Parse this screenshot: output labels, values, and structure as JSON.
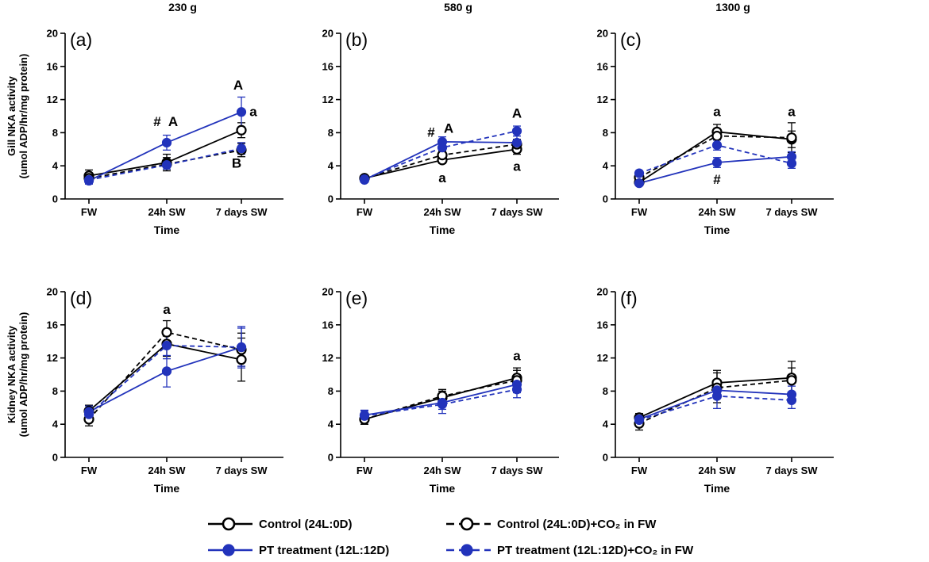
{
  "column_titles": [
    "230 g",
    "580 g",
    "1300 g"
  ],
  "row_ylabels": [
    [
      "Gill NKA activity",
      "(umol ADP/hr/mg protein)"
    ],
    [
      "Kidney NKA activity",
      "(umol ADP/hr/mg protein)"
    ]
  ],
  "legend": [
    {
      "label": "Control (24L:0D)",
      "color": "#000000",
      "dashed": false,
      "filled": false
    },
    {
      "label": "Control (24L:0D)+CO₂ in FW",
      "color": "#000000",
      "dashed": true,
      "filled": false
    },
    {
      "label": "PT treatment (12L:12D)",
      "color": "#2233bb",
      "dashed": false,
      "filled": true
    },
    {
      "label": "PT treatment (12L:12D)+CO₂ in FW",
      "color": "#2233bb",
      "dashed": true,
      "filled": true
    }
  ],
  "colors": {
    "control": "#000000",
    "pt": "#2233bb"
  },
  "chart_data": [
    {
      "type": "line",
      "panel_label": "(a)",
      "xlabel": "Time",
      "ylim": [
        0,
        20
      ],
      "yticks": [
        0,
        4,
        8,
        12,
        16,
        20
      ],
      "categories": [
        "FW",
        "24h SW",
        "7 days SW"
      ],
      "series": [
        {
          "name": "Control (24L:0D)",
          "values": [
            2.8,
            4.4,
            8.3
          ],
          "errors": [
            0.7,
            1.0,
            0.9
          ]
        },
        {
          "name": "Control (24L:0D)+CO₂ in FW",
          "values": [
            2.5,
            4.2,
            5.9
          ],
          "errors": [
            0.6,
            0.8,
            0.8
          ]
        },
        {
          "name": "PT treatment (12L:12D)",
          "values": [
            2.2,
            6.8,
            10.5
          ],
          "errors": [
            0.4,
            0.9,
            1.8
          ]
        },
        {
          "name": "PT treatment (12L:12D)+CO₂ in FW",
          "values": [
            2.3,
            4.1,
            6.1
          ],
          "errors": [
            0.5,
            0.5,
            0.7
          ]
        }
      ],
      "annotations": [
        {
          "text": "#",
          "cat": 1,
          "y": 8.8,
          "dx": -12
        },
        {
          "text": "A",
          "cat": 1,
          "y": 8.8,
          "dx": 8
        },
        {
          "text": "A",
          "cat": 2,
          "y": 13.2,
          "dx": -4
        },
        {
          "text": "a",
          "cat": 2,
          "y": 10.0,
          "dx": 15
        },
        {
          "text": "B",
          "cat": 2,
          "y": 3.8,
          "dx": -6
        }
      ]
    },
    {
      "type": "line",
      "panel_label": "(b)",
      "xlabel": "Time",
      "ylim": [
        0,
        20
      ],
      "yticks": [
        0,
        4,
        8,
        12,
        16,
        20
      ],
      "categories": [
        "FW",
        "24h SW",
        "7 days SW"
      ],
      "series": [
        {
          "name": "Control (24L:0D)",
          "values": [
            2.5,
            4.7,
            6.0
          ],
          "errors": [
            0.3,
            0.4,
            0.6
          ]
        },
        {
          "name": "Control (24L:0D)+CO₂ in FW",
          "values": [
            2.5,
            5.3,
            6.6
          ],
          "errors": [
            0.3,
            0.5,
            0.6
          ]
        },
        {
          "name": "PT treatment (12L:12D)",
          "values": [
            2.3,
            6.9,
            6.8
          ],
          "errors": [
            0.3,
            0.6,
            0.8
          ]
        },
        {
          "name": "PT treatment (12L:12D)+CO₂ in FW",
          "values": [
            2.4,
            6.2,
            8.2
          ],
          "errors": [
            0.3,
            0.6,
            0.6
          ]
        }
      ],
      "annotations": [
        {
          "text": "#",
          "cat": 1,
          "y": 7.5,
          "dx": -14
        },
        {
          "text": "A",
          "cat": 1,
          "y": 8.0,
          "dx": 8
        },
        {
          "text": "a",
          "cat": 1,
          "y": 2.0,
          "dx": 0
        },
        {
          "text": "A",
          "cat": 2,
          "y": 9.8,
          "dx": 0
        },
        {
          "text": "a",
          "cat": 2,
          "y": 3.4,
          "dx": 0
        }
      ]
    },
    {
      "type": "line",
      "panel_label": "(c)",
      "xlabel": "Time",
      "ylim": [
        0,
        20
      ],
      "yticks": [
        0,
        4,
        8,
        12,
        16,
        20
      ],
      "categories": [
        "FW",
        "24h SW",
        "7 days SW"
      ],
      "series": [
        {
          "name": "Control (24L:0D)",
          "values": [
            2.0,
            8.1,
            7.2
          ],
          "errors": [
            0.4,
            0.9,
            1.0
          ]
        },
        {
          "name": "Control (24L:0D)+CO₂ in FW",
          "values": [
            2.6,
            7.6,
            7.4
          ],
          "errors": [
            0.4,
            0.9,
            1.8
          ]
        },
        {
          "name": "PT treatment (12L:12D)",
          "values": [
            1.9,
            4.4,
            5.1
          ],
          "errors": [
            0.3,
            0.6,
            0.6
          ]
        },
        {
          "name": "PT treatment (12L:12D)+CO₂ in FW",
          "values": [
            3.1,
            6.5,
            4.3
          ],
          "errors": [
            0.3,
            0.6,
            0.6
          ]
        }
      ],
      "annotations": [
        {
          "text": "a",
          "cat": 1,
          "y": 10.0,
          "dx": 0
        },
        {
          "text": "#",
          "cat": 1,
          "y": 1.8,
          "dx": 0
        },
        {
          "text": "a",
          "cat": 2,
          "y": 10.0,
          "dx": 0
        }
      ]
    },
    {
      "type": "line",
      "panel_label": "(d)",
      "xlabel": "Time",
      "ylim": [
        0,
        20
      ],
      "yticks": [
        0,
        4,
        8,
        12,
        16,
        20
      ],
      "categories": [
        "FW",
        "24h SW",
        "7 days SW"
      ],
      "series": [
        {
          "name": "Control (24L:0D)",
          "values": [
            5.6,
            13.7,
            11.8
          ],
          "errors": [
            0.7,
            1.5,
            2.6
          ]
        },
        {
          "name": "Control (24L:0D)+CO₂ in FW",
          "values": [
            4.6,
            15.1,
            13.0
          ],
          "errors": [
            0.8,
            1.4,
            2.0
          ]
        },
        {
          "name": "PT treatment (12L:12D)",
          "values": [
            5.5,
            10.4,
            13.3
          ],
          "errors": [
            0.7,
            1.9,
            2.3
          ]
        },
        {
          "name": "PT treatment (12L:12D)+CO₂ in FW",
          "values": [
            5.2,
            13.5,
            13.3
          ],
          "errors": [
            0.7,
            1.6,
            2.5
          ]
        }
      ],
      "annotations": [
        {
          "text": "a",
          "cat": 1,
          "y": 17.3,
          "dx": 0
        }
      ]
    },
    {
      "type": "line",
      "panel_label": "(e)",
      "xlabel": "Time",
      "ylim": [
        0,
        20
      ],
      "yticks": [
        0,
        4,
        8,
        12,
        16,
        20
      ],
      "categories": [
        "FW",
        "24h SW",
        "7 days SW"
      ],
      "series": [
        {
          "name": "Control (24L:0D)",
          "values": [
            4.6,
            7.2,
            9.6
          ],
          "errors": [
            0.6,
            0.8,
            1.2
          ]
        },
        {
          "name": "Control (24L:0D)+CO₂ in FW",
          "values": [
            4.6,
            7.4,
            9.3
          ],
          "errors": [
            0.6,
            0.8,
            1.2
          ]
        },
        {
          "name": "PT treatment (12L:12D)",
          "values": [
            5.1,
            6.6,
            8.8
          ],
          "errors": [
            0.6,
            0.8,
            1.0
          ]
        },
        {
          "name": "PT treatment (12L:12D)+CO₂ in FW",
          "values": [
            5.0,
            6.4,
            8.2
          ],
          "errors": [
            0.6,
            1.1,
            1.0
          ]
        }
      ],
      "annotations": [
        {
          "text": "a",
          "cat": 2,
          "y": 11.7,
          "dx": 0
        }
      ]
    },
    {
      "type": "line",
      "panel_label": "(f)",
      "xlabel": "Time",
      "ylim": [
        0,
        20
      ],
      "yticks": [
        0,
        4,
        8,
        12,
        16,
        20
      ],
      "categories": [
        "FW",
        "24h SW",
        "7 days SW"
      ],
      "series": [
        {
          "name": "Control (24L:0D)",
          "values": [
            4.8,
            9.0,
            9.6
          ],
          "errors": [
            0.5,
            1.5,
            2.0
          ]
        },
        {
          "name": "Control (24L:0D)+CO₂ in FW",
          "values": [
            4.1,
            8.4,
            9.3
          ],
          "errors": [
            0.8,
            1.8,
            1.5
          ]
        },
        {
          "name": "PT treatment (12L:12D)",
          "values": [
            4.6,
            8.1,
            7.6
          ],
          "errors": [
            0.5,
            1.0,
            1.0
          ]
        },
        {
          "name": "PT treatment (12L:12D)+CO₂ in FW",
          "values": [
            4.5,
            7.4,
            6.9
          ],
          "errors": [
            0.5,
            1.5,
            1.0
          ]
        }
      ],
      "annotations": []
    }
  ]
}
